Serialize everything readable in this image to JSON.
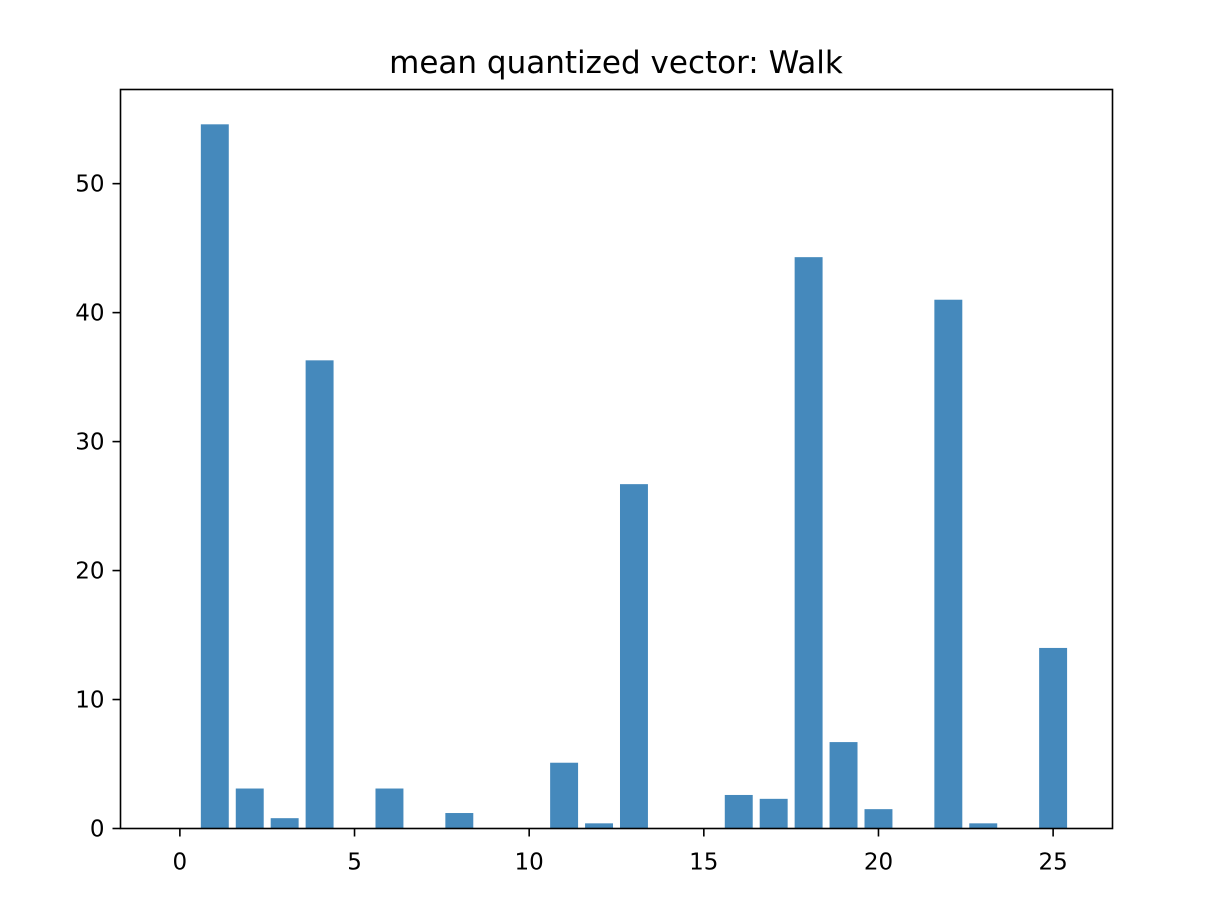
{
  "chart_data": {
    "type": "bar",
    "title": "mean quantized vector: Walk",
    "xlabel": "",
    "ylabel": "",
    "x": [
      0,
      1,
      2,
      3,
      4,
      5,
      6,
      7,
      8,
      9,
      10,
      11,
      12,
      13,
      14,
      15,
      16,
      17,
      18,
      19,
      20,
      21,
      22,
      23,
      24,
      25
    ],
    "values": [
      0,
      54.6,
      3.1,
      0.8,
      36.3,
      0,
      3.1,
      0,
      1.2,
      0,
      0,
      5.1,
      0.4,
      26.7,
      0,
      0,
      2.6,
      2.3,
      44.3,
      6.7,
      1.5,
      0,
      41.0,
      0.4,
      0,
      14.0
    ],
    "xlim": [
      -1.7,
      26.7
    ],
    "ylim": [
      0,
      57.3
    ],
    "xticks": [
      "0",
      "5",
      "10",
      "15",
      "20",
      "25"
    ],
    "yticks": [
      "0",
      "10",
      "20",
      "30",
      "40",
      "50"
    ],
    "bar_color": "#4589bc",
    "grid": false,
    "legend": false
  }
}
